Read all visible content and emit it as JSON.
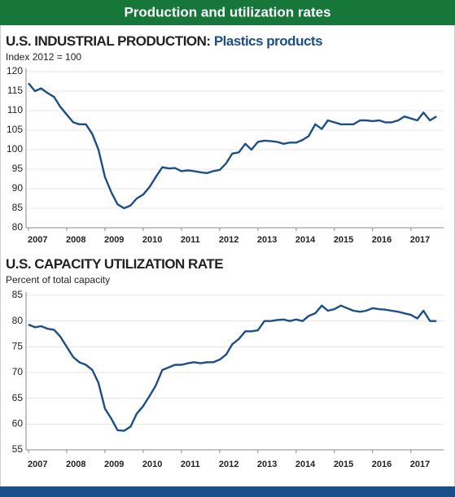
{
  "header": {
    "title": "Production and utilization rates"
  },
  "chart_data": [
    {
      "type": "line",
      "title": "U.S. INDUSTRIAL PRODUCTION:",
      "title_highlight": "Plastics products",
      "subtitle": "Index 2012 = 100",
      "color": "#1c4f86",
      "grid": true,
      "x": [
        2007,
        2007.17,
        2007.33,
        2007.5,
        2007.67,
        2007.83,
        2008,
        2008.17,
        2008.33,
        2008.5,
        2008.67,
        2008.83,
        2009,
        2009.17,
        2009.33,
        2009.5,
        2009.67,
        2009.83,
        2010,
        2010.17,
        2010.33,
        2010.5,
        2010.67,
        2010.83,
        2011,
        2011.17,
        2011.33,
        2011.5,
        2011.67,
        2011.83,
        2012,
        2012.17,
        2012.33,
        2012.5,
        2012.67,
        2012.83,
        2013,
        2013.17,
        2013.33,
        2013.5,
        2013.67,
        2013.83,
        2014,
        2014.17,
        2014.33,
        2014.5,
        2014.67,
        2014.83,
        2015,
        2015.17,
        2015.33,
        2015.5,
        2015.67,
        2015.83,
        2016,
        2016.17,
        2016.33,
        2016.5,
        2016.67,
        2016.83,
        2017,
        2017.17,
        2017.33,
        2017.5,
        2017.67
      ],
      "values": [
        117,
        115,
        115.7,
        114.5,
        113.5,
        111,
        109,
        107,
        106.5,
        106.5,
        104,
        100,
        93,
        89,
        86,
        85,
        85.7,
        87.5,
        88.5,
        90.5,
        93,
        95.5,
        95.2,
        95.3,
        94.5,
        94.7,
        94.5,
        94.2,
        94,
        94.5,
        94.8,
        96.5,
        99,
        99.3,
        101.5,
        100,
        102,
        102.3,
        102.2,
        102,
        101.5,
        101.8,
        101.8,
        102.5,
        103.5,
        106.5,
        105.3,
        107.5,
        107,
        106.5,
        106.5,
        106.5,
        107.5,
        107.5,
        107.3,
        107.5,
        107,
        107,
        107.5,
        108.5,
        108,
        107.5,
        109.5,
        107.5,
        108.5
      ],
      "xlim": [
        2007,
        2017.75
      ],
      "xticks": [
        2007,
        2008,
        2009,
        2010,
        2011,
        2012,
        2013,
        2014,
        2015,
        2016,
        2017
      ],
      "ylim": [
        80,
        120
      ],
      "yticks": [
        80,
        85,
        90,
        95,
        100,
        105,
        110,
        115,
        120
      ]
    },
    {
      "type": "line",
      "title": "U.S. CAPACITY UTILIZATION RATE",
      "subtitle": "Percent of total capacity",
      "color": "#1c4f86",
      "grid": true,
      "x": [
        2007,
        2007.17,
        2007.33,
        2007.5,
        2007.67,
        2007.83,
        2008,
        2008.17,
        2008.33,
        2008.5,
        2008.67,
        2008.83,
        2009,
        2009.17,
        2009.33,
        2009.5,
        2009.67,
        2009.83,
        2010,
        2010.17,
        2010.33,
        2010.5,
        2010.67,
        2010.83,
        2011,
        2011.17,
        2011.33,
        2011.5,
        2011.67,
        2011.83,
        2012,
        2012.17,
        2012.33,
        2012.5,
        2012.67,
        2012.83,
        2013,
        2013.17,
        2013.33,
        2013.5,
        2013.67,
        2013.83,
        2014,
        2014.17,
        2014.33,
        2014.5,
        2014.67,
        2014.83,
        2015,
        2015.17,
        2015.33,
        2015.5,
        2015.67,
        2015.83,
        2016,
        2016.17,
        2016.33,
        2016.5,
        2016.67,
        2016.83,
        2017,
        2017.17,
        2017.33,
        2017.5,
        2017.67
      ],
      "values": [
        79.3,
        78.8,
        79,
        78.5,
        78.3,
        77,
        75,
        73,
        72,
        71.5,
        70.5,
        68,
        63,
        61,
        58.8,
        58.7,
        59.5,
        62,
        63.5,
        65.5,
        67.5,
        70.5,
        71,
        71.5,
        71.5,
        71.8,
        72,
        71.8,
        72,
        72,
        72.5,
        73.5,
        75.5,
        76.5,
        78,
        78,
        78.2,
        80,
        80,
        80.2,
        80.3,
        80,
        80.3,
        80,
        81,
        81.5,
        83,
        82,
        82.3,
        83,
        82.5,
        82,
        81.8,
        82,
        82.5,
        82.3,
        82.2,
        82,
        81.8,
        81.5,
        81.2,
        80.5,
        82,
        80,
        80
      ],
      "xlim": [
        2007,
        2017.75
      ],
      "xticks": [
        2007,
        2008,
        2009,
        2010,
        2011,
        2012,
        2013,
        2014,
        2015,
        2016,
        2017
      ],
      "ylim": [
        55,
        85
      ],
      "yticks": [
        55,
        60,
        65,
        70,
        75,
        80,
        85
      ]
    }
  ]
}
